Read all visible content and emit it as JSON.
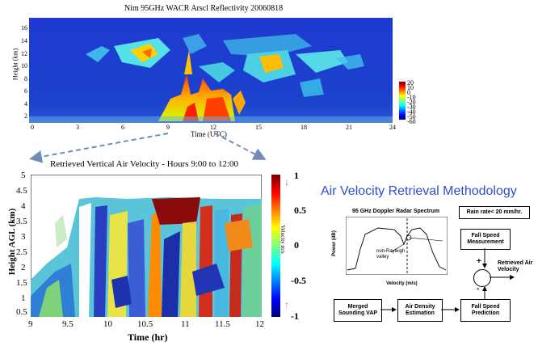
{
  "top_plot": {
    "title": "Nim  95GHz  WACR Arscl Reflectivity  20060818",
    "ylabel": "Height (km)",
    "xlabel": "Time (UTC)",
    "xticks": [
      "0",
      "3",
      "6",
      "9",
      "12",
      "15",
      "18",
      "21",
      "24"
    ],
    "yticks": [
      "16",
      "14",
      "12",
      "10",
      "8",
      "6",
      "4",
      "2"
    ],
    "colorbar": [
      "20",
      "10",
      "0",
      "-10",
      "-20",
      "-30",
      "-40",
      "-50",
      "-60"
    ]
  },
  "bottom_plot": {
    "title": "Retrieved Vertical Air Velocity - Hours 9:00 to 12:00",
    "ylabel": "Height AGL (km)",
    "xlabel": "Time (hr)",
    "xticks": [
      "9",
      "9.5",
      "10",
      "10.5",
      "11",
      "11.5",
      "12"
    ],
    "yticks": [
      "5",
      "4.5",
      "4",
      "3.5",
      "3",
      "2.5",
      "2",
      "1.5",
      "1",
      "0.5"
    ],
    "colorbar_label": "Velocity m/s",
    "colorbar_ticks": [
      "1",
      "0.5",
      "0",
      "-0.5",
      "-1"
    ]
  },
  "methodology": {
    "heading": "Air Velocity Retrieval Methodology",
    "spectrum_title": "95 GHz Doppler Radar Spectrum",
    "spectrum_ylabel": "Power (dB)",
    "spectrum_xlabel": "Velocity (m/s)",
    "valley_label": "non-Rayleigh valley",
    "rain_rate": "Rain rate< 20 mm/hr.",
    "fall_speed_measurement": "Fall Speed Measurement",
    "retrieved_air_velocity": "Retrieved Air Velocity",
    "merged_sounding": "Merged Sounding VAP",
    "air_density": "Air Density Estimation",
    "fall_speed_prediction": "Fall Speed Prediction",
    "plus": "+",
    "minus": "-"
  },
  "colors": {
    "heading": "#2b4fd1",
    "dashed_arrow": "#6f8fb6",
    "radar_background": "#1e3bc8"
  }
}
